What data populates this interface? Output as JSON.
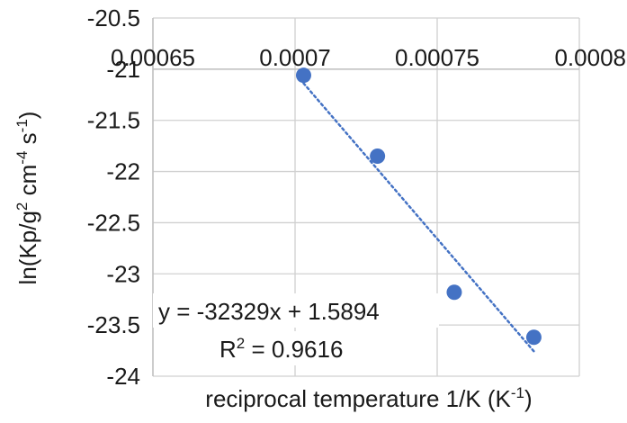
{
  "chart_data": {
    "type": "scatter",
    "title": "",
    "xlabel": "reciprocal temperature 1/K (K",
    "xlabel_sup": "-1",
    "xlabel_tail": ")",
    "ylabel": "ln(Kp/g",
    "ylabel_parts": [
      {
        "text": "ln(Kp/g",
        "sup": false
      },
      {
        "text": "2",
        "sup": true
      },
      {
        "text": " cm",
        "sup": false
      },
      {
        "text": "-4",
        "sup": true
      },
      {
        "text": " s",
        "sup": false
      },
      {
        "text": "-1",
        "sup": true
      },
      {
        "text": ")",
        "sup": false
      }
    ],
    "xlim": [
      0.00065,
      0.0008
    ],
    "ylim": [
      -24,
      -20.5
    ],
    "x_ticks": [
      0.00065,
      0.0007,
      0.00075,
      0.0008
    ],
    "x_tick_labels": [
      "0.00065",
      "0.0007",
      "0.00075",
      "0.0008"
    ],
    "y_ticks": [
      -20.5,
      -21,
      -21.5,
      -22,
      -22.5,
      -23,
      -23.5,
      -24
    ],
    "y_tick_labels": [
      "-20.5",
      "-21",
      "-21.5",
      "-22",
      "-22.5",
      "-23",
      "-23.5",
      "-24"
    ],
    "x_axis_crosses_at": -21,
    "grid": true,
    "series": [
      {
        "x": [
          0.000703,
          0.000729,
          0.000756,
          0.000784
        ],
        "y": [
          -21.06,
          -21.85,
          -23.18,
          -23.62
        ],
        "color": "#4472c4"
      }
    ],
    "trendline": {
      "type": "linear",
      "slope": -32329,
      "intercept": 1.5894,
      "x_range": [
        0.000703,
        0.000784
      ],
      "color": "#4472c4",
      "style": "dotted"
    },
    "annotations": {
      "equation": "y = -32329x + 1.5894",
      "r2_prefix": "R",
      "r2_sup": "2",
      "r2_value": " = 0.9616"
    }
  }
}
